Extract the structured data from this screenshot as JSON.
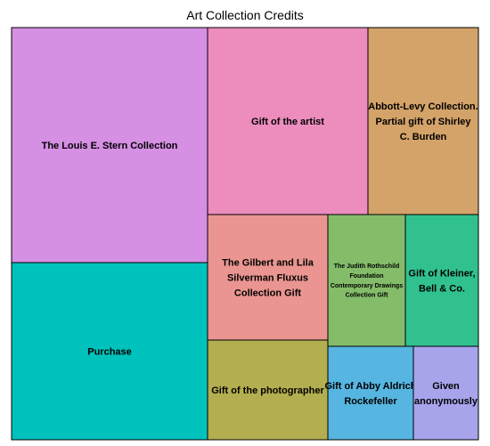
{
  "chart_data": {
    "type": "treemap",
    "title": "Art Collection Credits",
    "items": [
      {
        "label": "The Louis E. Stern Collection",
        "color": "#D58FE3"
      },
      {
        "label": "Purchase",
        "color": "#00C2BC"
      },
      {
        "label": "Gift of the artist",
        "color": "#EC8DBE"
      },
      {
        "label": "Abbott-Levy Collection. Partial gift of Shirley C. Burden",
        "color": "#D4A369"
      },
      {
        "label": "The Gilbert and Lila Silverman Fluxus Collection Gift",
        "color": "#EA9591"
      },
      {
        "label": "Gift of the photographer",
        "color": "#B3AE50"
      },
      {
        "label": "The Judith Rothschild Foundation Contemporary Drawings Collection Gift",
        "color": "#84BC6A"
      },
      {
        "label": "Gift of Kleiner, Bell & Co.",
        "color": "#31C18F"
      },
      {
        "label": "Gift of Abby Aldrich Rockefeller",
        "color": "#56B5E1"
      },
      {
        "label": "Given anonymously",
        "color": "#A7A4EC"
      }
    ]
  }
}
